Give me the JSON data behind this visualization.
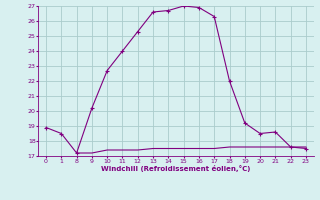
{
  "xlabel": "Windchill (Refroidissement éolien,°C)",
  "x_values": [
    0,
    1,
    8,
    9,
    10,
    11,
    12,
    13,
    14,
    15,
    16,
    17,
    18,
    19,
    20,
    21,
    22,
    23
  ],
  "y_values": [
    18.9,
    18.5,
    17.2,
    20.2,
    22.7,
    24.0,
    25.3,
    26.6,
    26.7,
    27.0,
    26.9,
    26.3,
    22.0,
    19.2,
    18.5,
    18.6,
    17.6,
    17.5
  ],
  "second_line_x": [
    8,
    9,
    10,
    11,
    12,
    13,
    14,
    15,
    16,
    17,
    18,
    19,
    20,
    21,
    22,
    23
  ],
  "second_line_y": [
    17.2,
    17.2,
    17.4,
    17.4,
    17.4,
    17.5,
    17.5,
    17.5,
    17.5,
    17.5,
    17.6,
    17.6,
    17.6,
    17.6,
    17.6,
    17.6
  ],
  "line_color": "#800080",
  "bg_color": "#d8f0f0",
  "grid_color": "#aacccc",
  "ylim": [
    17,
    27
  ],
  "yticks": [
    17,
    18,
    19,
    20,
    21,
    22,
    23,
    24,
    25,
    26,
    27
  ],
  "xtick_positions": [
    0,
    1,
    8,
    9,
    10,
    11,
    12,
    13,
    14,
    15,
    16,
    17,
    18,
    19,
    20,
    21,
    22,
    23
  ],
  "xtick_labels": [
    "0",
    "1",
    "8",
    "9",
    "10",
    "11",
    "12",
    "13",
    "14",
    "15",
    "16",
    "17",
    "18",
    "19",
    "20",
    "21",
    "22",
    "23"
  ],
  "marker": "+"
}
